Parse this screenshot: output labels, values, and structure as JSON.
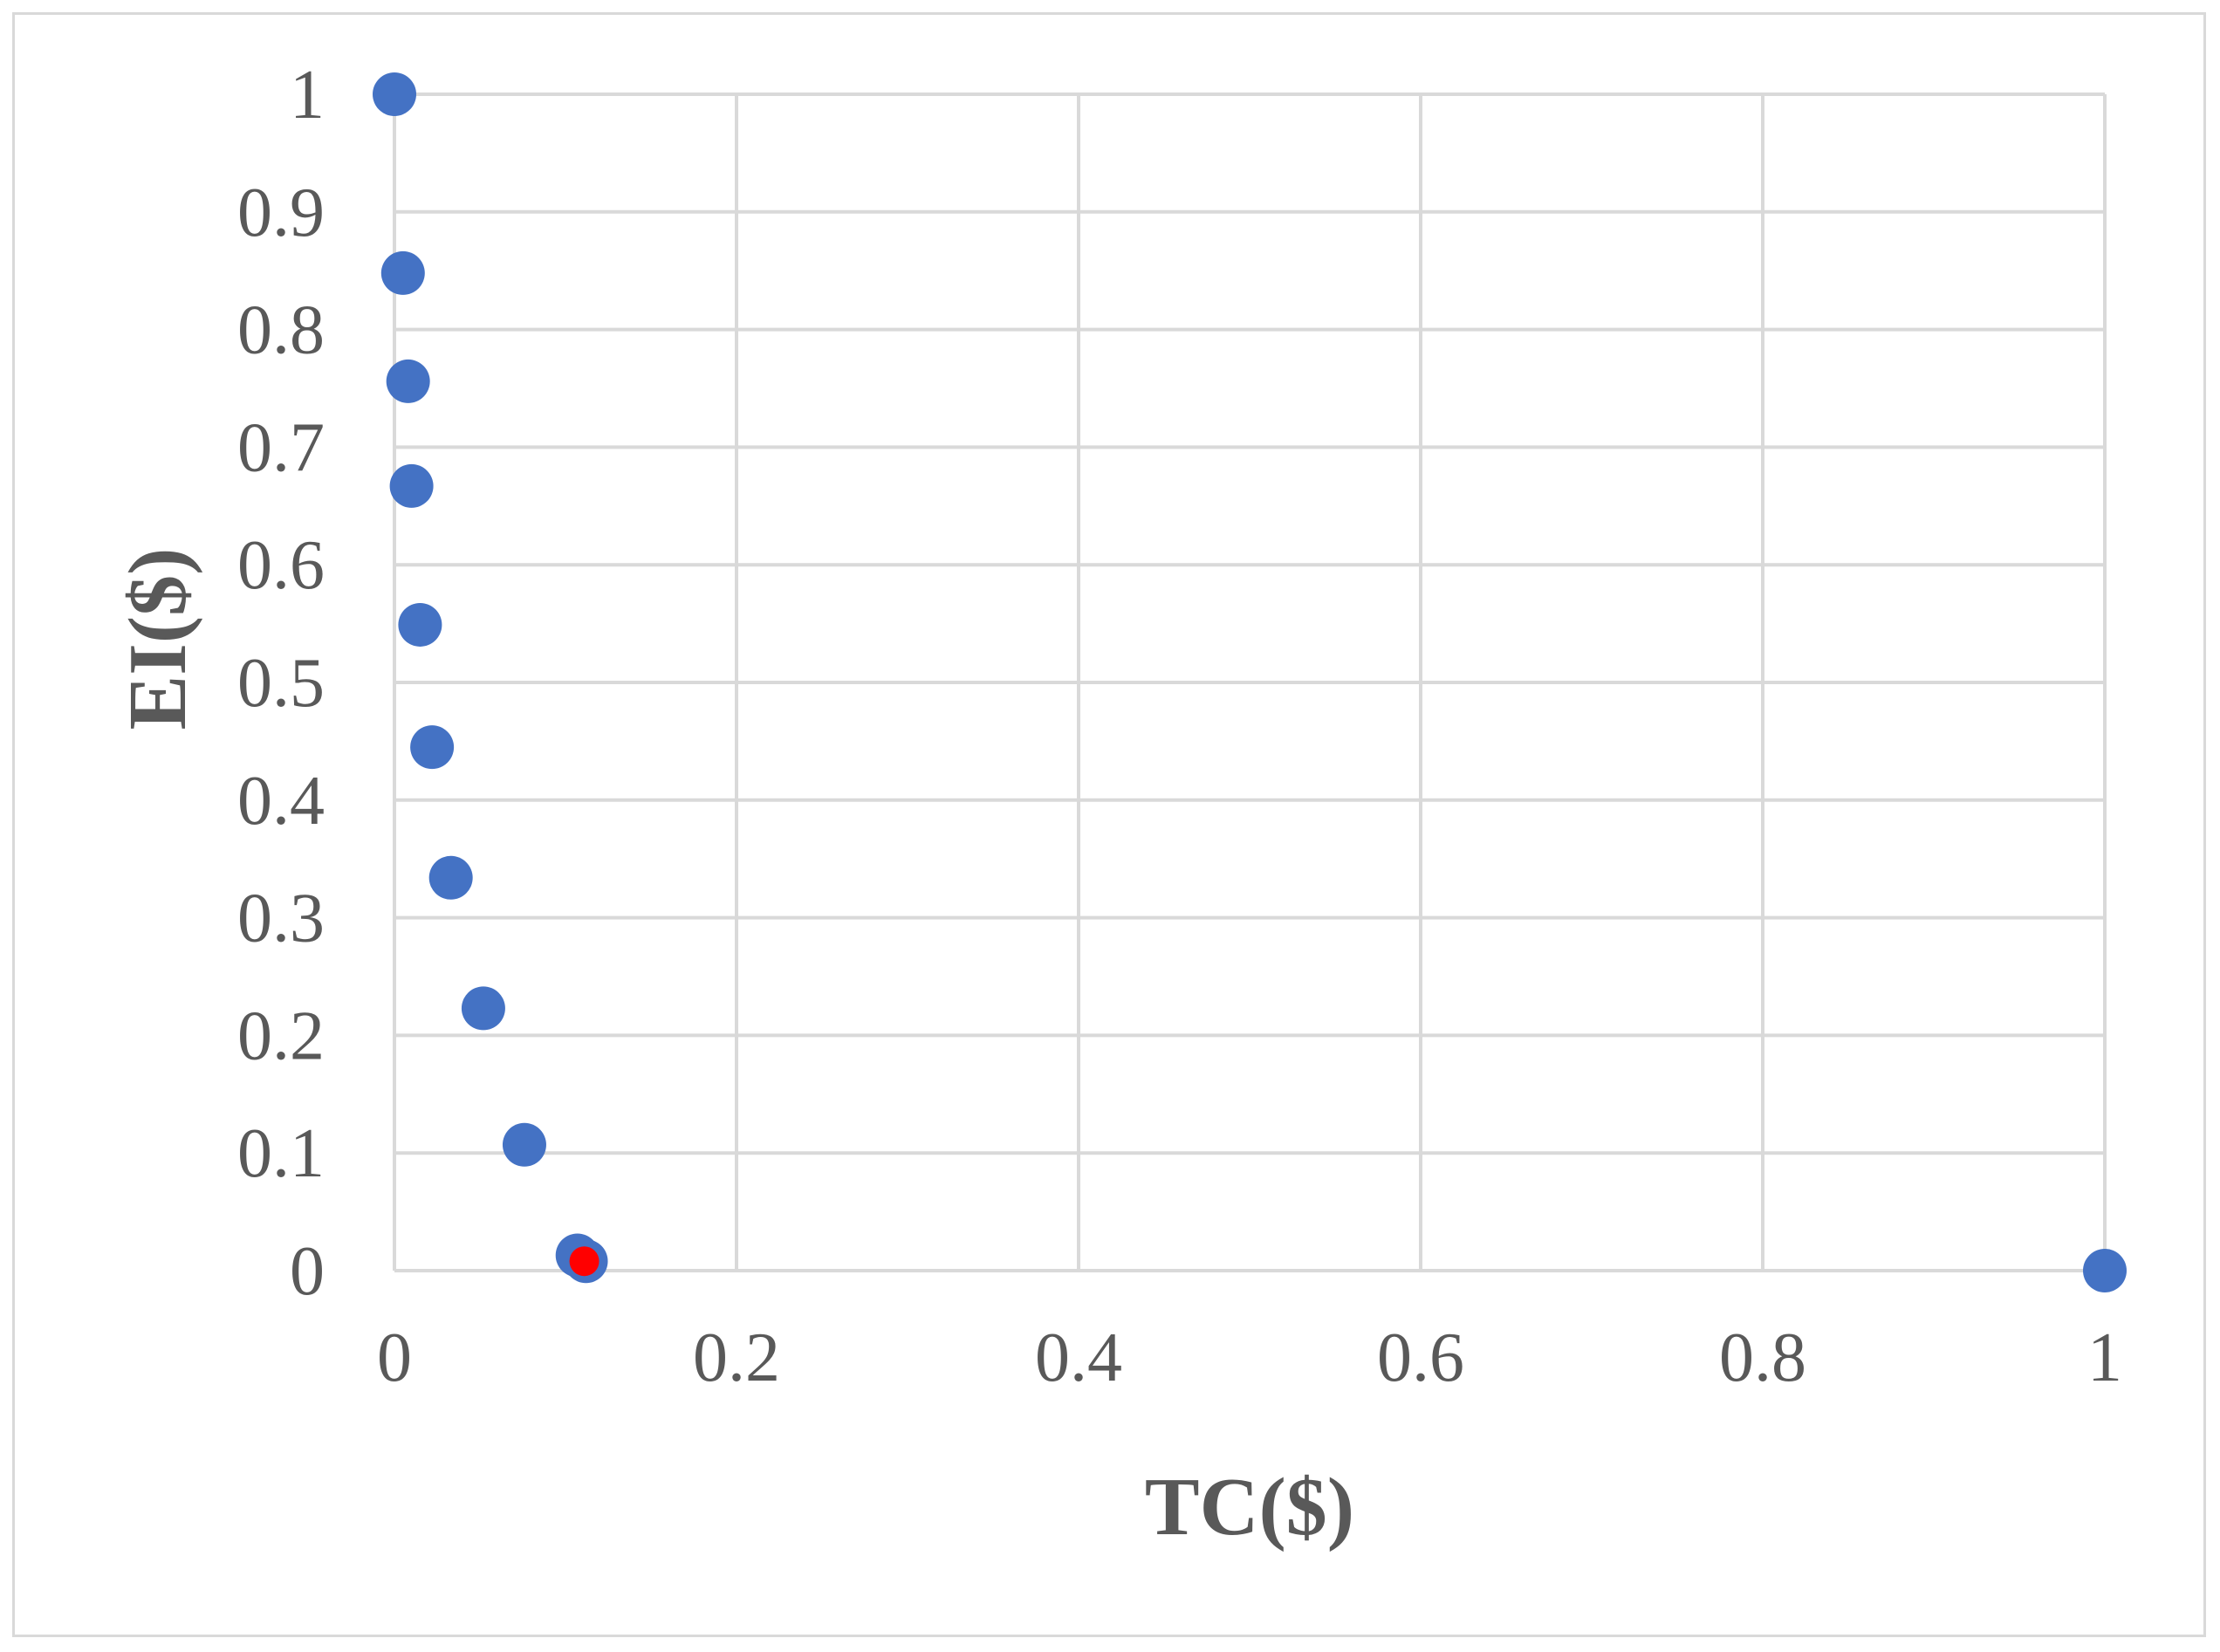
{
  "chart_data": {
    "type": "scatter",
    "title": "",
    "xlabel": "TC($)",
    "ylabel": "EI($)",
    "xlim": [
      0,
      1
    ],
    "ylim": [
      0,
      1
    ],
    "x_ticks": [
      "0",
      "0.2",
      "0.4",
      "0.6",
      "0.8",
      "1"
    ],
    "y_ticks": [
      "0",
      "0.1",
      "0.2",
      "0.3",
      "0.4",
      "0.5",
      "0.6",
      "0.7",
      "0.8",
      "0.9",
      "1"
    ],
    "grid": true,
    "legend": "none",
    "series": [
      {
        "color": "#4472c4",
        "points": [
          {
            "x": 0.0,
            "y": 1.0
          },
          {
            "x": 0.005,
            "y": 0.848
          },
          {
            "x": 0.008,
            "y": 0.756
          },
          {
            "x": 0.01,
            "y": 0.667
          },
          {
            "x": 0.015,
            "y": 0.549
          },
          {
            "x": 0.022,
            "y": 0.445
          },
          {
            "x": 0.033,
            "y": 0.334
          },
          {
            "x": 0.052,
            "y": 0.223
          },
          {
            "x": 0.076,
            "y": 0.107
          },
          {
            "x": 0.107,
            "y": 0.013
          },
          {
            "x": 0.112,
            "y": 0.008
          },
          {
            "x": 1.0,
            "y": 0.0
          }
        ]
      },
      {
        "color": "#ff0000",
        "points": [
          {
            "x": 0.111,
            "y": 0.008
          }
        ]
      }
    ]
  }
}
